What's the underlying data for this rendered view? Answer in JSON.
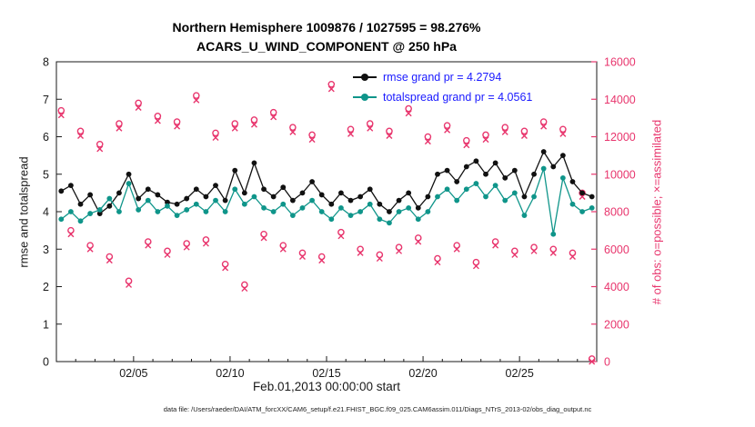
{
  "title": {
    "line1": "Northern Hemisphere 1009876 / 1027595 = 98.276%",
    "line2": "ACARS_U_WIND_COMPONENT @ 250 hPa"
  },
  "legend": [
    {
      "label": "rmse grand pr = 4.2794",
      "color": "#111111"
    },
    {
      "label": "totalspread grand pr = 4.0561",
      "color": "#0f958a"
    }
  ],
  "footer": {
    "data_file": "data file: /Users/raeder/DAI/ATM_forcXX/CAM6_setup/f.e21.FHIST_BGC.f09_025.CAM6assim.011/Diags_NTrS_2013-02/obs_diag_output.nc"
  },
  "colors": {
    "obs_pink": "#e8356d",
    "rmse_black": "#111111",
    "spread_teal": "#0f958a",
    "legend_text": "#1a1aff",
    "axis_dark": "#1a1a1a"
  },
  "chart_data": {
    "type": "line",
    "title": "Northern Hemisphere 1009876 / 1027595 = 98.276%",
    "subtitle": "ACARS_U_WIND_COMPONENT @ 250 hPa",
    "xlabel": "Feb.01,2013 00:00:00 start",
    "ylabel_left": "rmse and totalspread",
    "ylabel_right": "# of obs: o=possible; ×=assimilated",
    "grid": false,
    "legend_position": "top-inside",
    "xlim": [
      1,
      29
    ],
    "ylim_left": [
      0,
      8
    ],
    "ylim_right": [
      0,
      16000
    ],
    "xticks": {
      "values": [
        5,
        10,
        15,
        20,
        25
      ],
      "labels": [
        "02/05",
        "02/10",
        "02/15",
        "02/20",
        "02/25"
      ]
    },
    "yticks_left": [
      0,
      1,
      2,
      3,
      4,
      5,
      6,
      7,
      8
    ],
    "yticks_right": [
      0,
      2000,
      4000,
      6000,
      8000,
      10000,
      12000,
      14000,
      16000
    ],
    "x": [
      1.25,
      1.75,
      2.25,
      2.75,
      3.25,
      3.75,
      4.25,
      4.75,
      5.25,
      5.75,
      6.25,
      6.75,
      7.25,
      7.75,
      8.25,
      8.75,
      9.25,
      9.75,
      10.25,
      10.75,
      11.25,
      11.75,
      12.25,
      12.75,
      13.25,
      13.75,
      14.25,
      14.75,
      15.25,
      15.75,
      16.25,
      16.75,
      17.25,
      17.75,
      18.25,
      18.75,
      19.25,
      19.75,
      20.25,
      20.75,
      21.25,
      21.75,
      22.25,
      22.75,
      23.25,
      23.75,
      24.25,
      24.75,
      25.25,
      25.75,
      26.25,
      26.75,
      27.25,
      27.75,
      28.25,
      28.75
    ],
    "series": [
      {
        "name": "rmse",
        "grand_pr": 4.2794,
        "axis": "left",
        "color": "#111111",
        "marker": "dot",
        "values": [
          4.55,
          4.7,
          4.2,
          4.45,
          3.95,
          4.15,
          4.5,
          5.0,
          4.35,
          4.6,
          4.45,
          4.25,
          4.2,
          4.35,
          4.6,
          4.4,
          4.7,
          4.3,
          5.1,
          4.5,
          5.3,
          4.6,
          4.4,
          4.65,
          4.3,
          4.5,
          4.8,
          4.45,
          4.2,
          4.5,
          4.3,
          4.4,
          4.6,
          4.2,
          4.0,
          4.3,
          4.5,
          4.1,
          4.4,
          5.0,
          5.1,
          4.8,
          5.2,
          5.35,
          5.0,
          5.3,
          4.9,
          5.1,
          4.4,
          5.0,
          5.6,
          5.2,
          5.5,
          4.8,
          4.5,
          4.4
        ]
      },
      {
        "name": "totalspread",
        "grand_pr": 4.0561,
        "axis": "left",
        "color": "#0f958a",
        "marker": "dot",
        "values": [
          3.8,
          4.0,
          3.75,
          3.95,
          4.05,
          4.35,
          4.0,
          4.75,
          4.05,
          4.3,
          4.0,
          4.15,
          3.9,
          4.05,
          4.2,
          4.0,
          4.3,
          4.0,
          4.6,
          4.2,
          4.4,
          4.1,
          4.0,
          4.2,
          3.9,
          4.1,
          4.3,
          4.0,
          3.8,
          4.1,
          3.9,
          4.0,
          4.2,
          3.8,
          3.7,
          4.0,
          4.1,
          3.8,
          4.0,
          4.4,
          4.6,
          4.3,
          4.6,
          4.75,
          4.4,
          4.7,
          4.3,
          4.5,
          3.9,
          4.4,
          5.15,
          3.4,
          4.9,
          4.2,
          4.0,
          4.1
        ]
      },
      {
        "name": "possible",
        "axis": "right",
        "color": "#e8356d",
        "marker": "o",
        "values": [
          13400,
          7000,
          12300,
          6200,
          11600,
          5600,
          12700,
          4300,
          13800,
          6400,
          13100,
          5900,
          12800,
          6300,
          14200,
          6500,
          12200,
          5200,
          12700,
          4100,
          12900,
          6800,
          13300,
          6200,
          12500,
          5800,
          12100,
          5600,
          14800,
          6900,
          12400,
          6000,
          12700,
          5700,
          12300,
          6100,
          13500,
          6600,
          12000,
          5500,
          12600,
          6200,
          11800,
          5300,
          12100,
          6400,
          12500,
          5900,
          12300,
          6100,
          12800,
          6000,
          12400,
          5800,
          9000,
          150
        ]
      },
      {
        "name": "assimilated",
        "axis": "right",
        "color": "#e8356d",
        "marker": "x",
        "values": [
          13150,
          6800,
          12050,
          6000,
          11350,
          5400,
          12450,
          4100,
          13550,
          6200,
          12850,
          5700,
          12550,
          6100,
          13950,
          6300,
          11950,
          5000,
          12450,
          3900,
          12650,
          6600,
          13050,
          6000,
          12250,
          5600,
          11850,
          5400,
          14550,
          6700,
          12150,
          5800,
          12450,
          5500,
          12050,
          5900,
          13250,
          6400,
          11750,
          5300,
          12350,
          6000,
          11550,
          5100,
          11850,
          6200,
          12250,
          5700,
          12050,
          5900,
          12550,
          5800,
          12150,
          5600,
          8800,
          0
        ]
      }
    ]
  }
}
